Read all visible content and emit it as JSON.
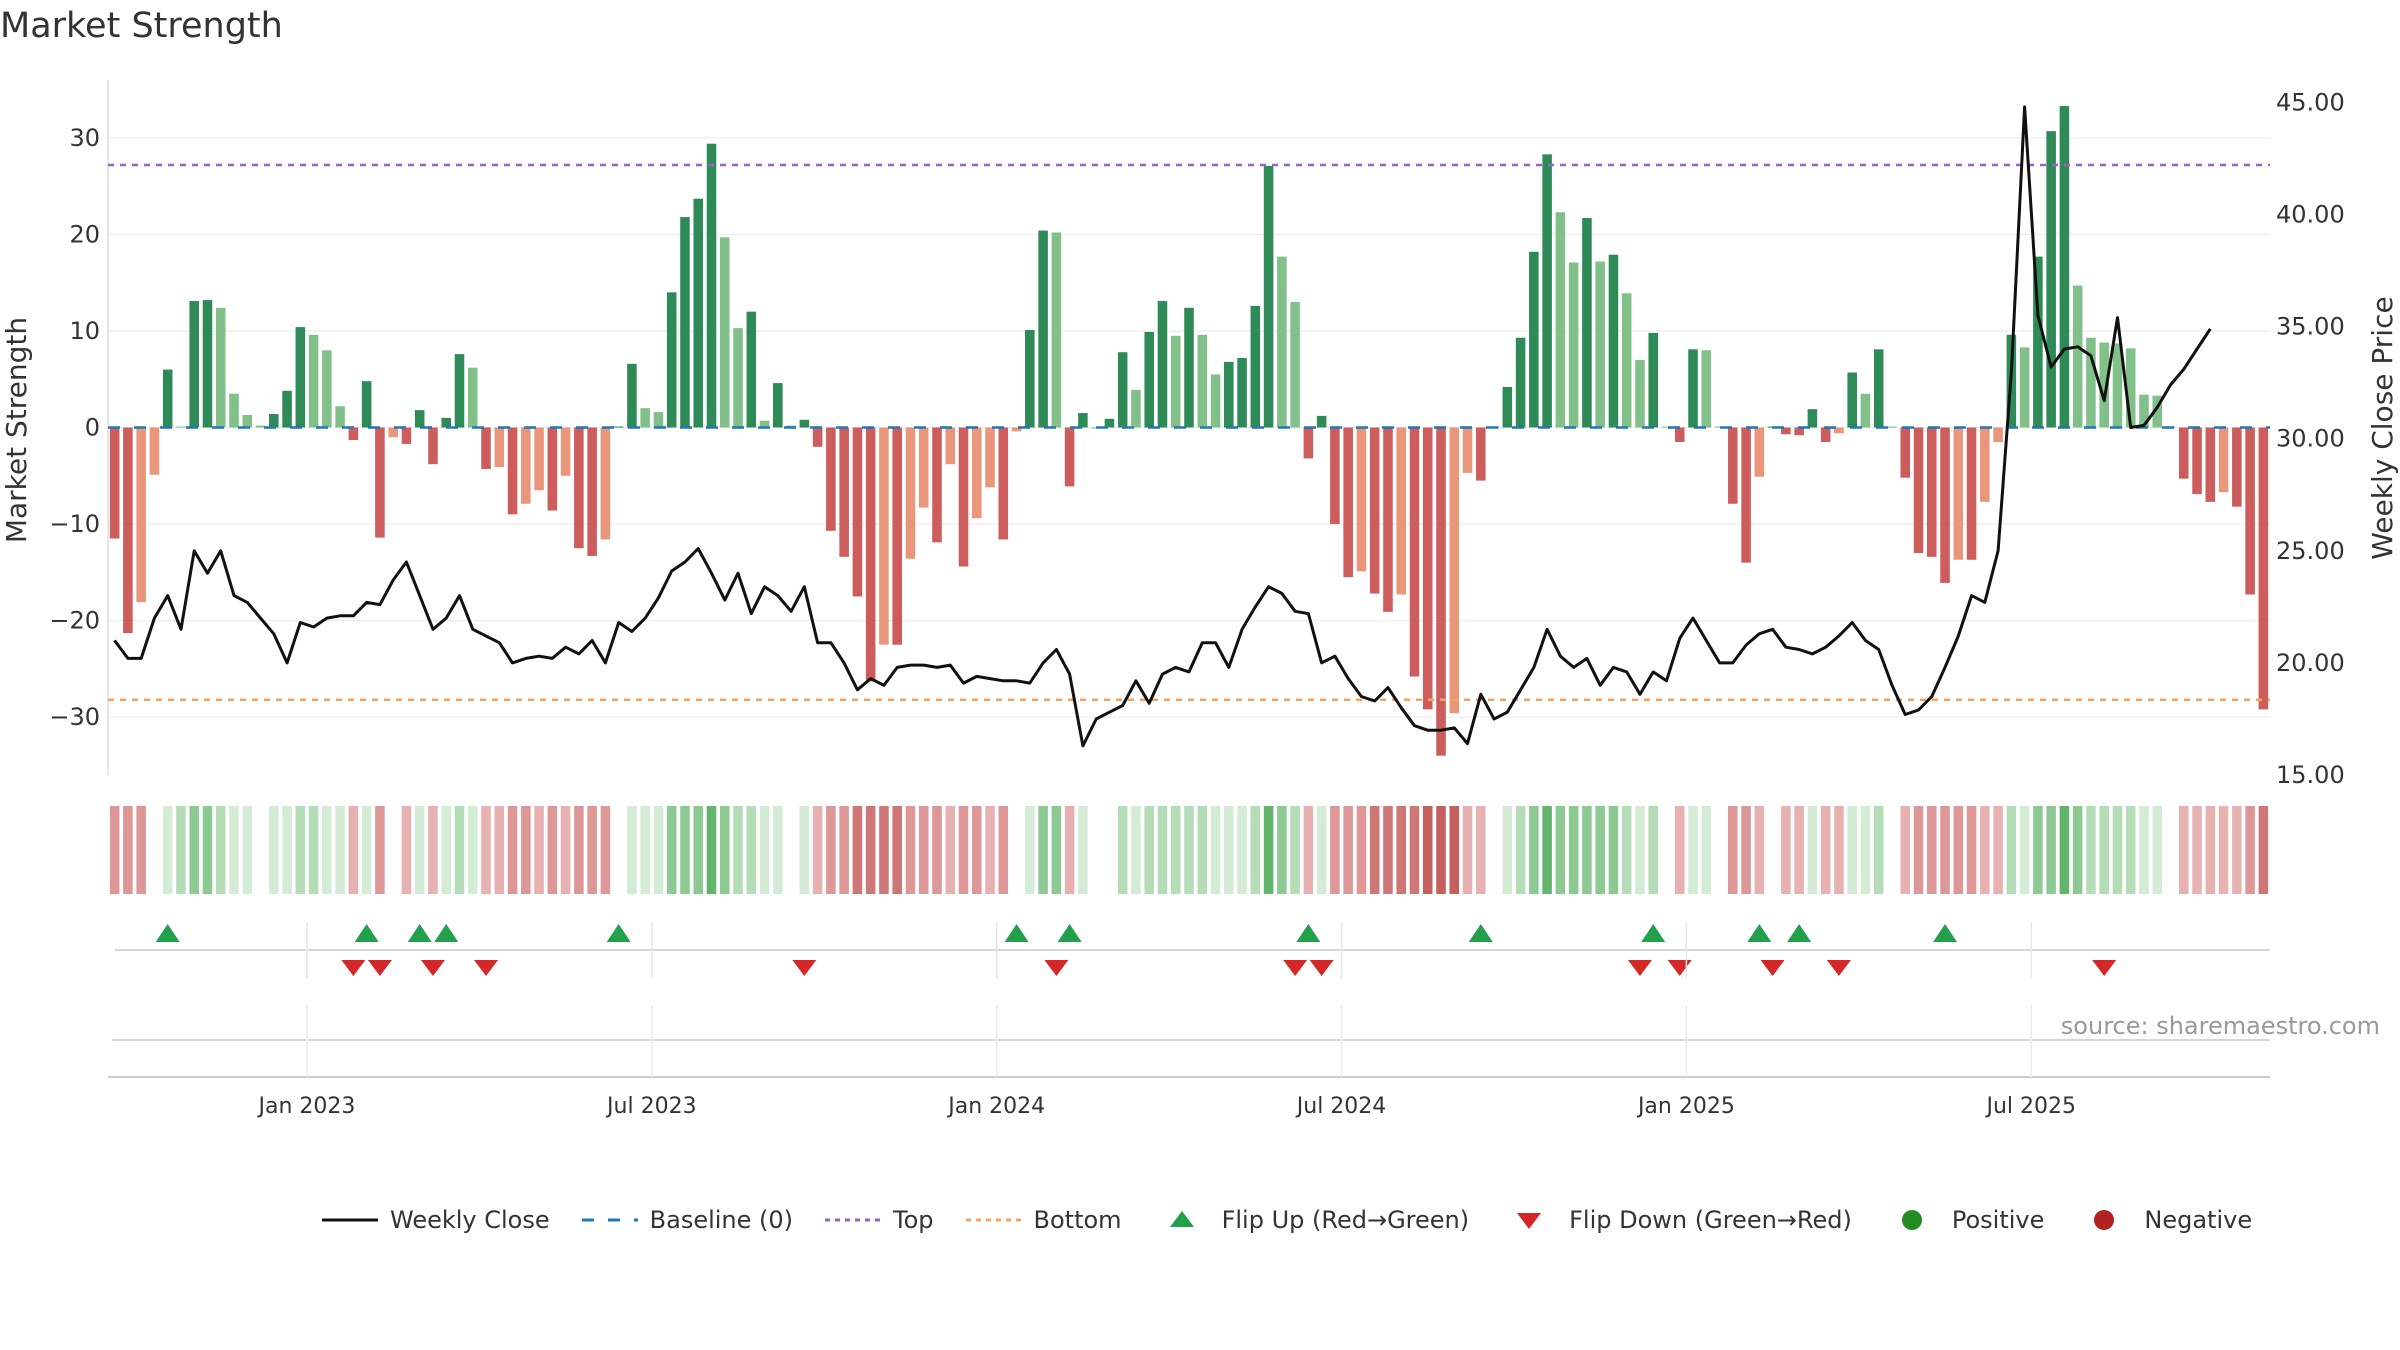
{
  "title": "Market Strength",
  "source": "source: sharemaestro.com",
  "colors": {
    "pos_strong": "#2e8b57",
    "pos_weak": "#82c08a",
    "neg_strong": "#cd5c5c",
    "neg_weak": "#e9967a",
    "close": "#111111",
    "baseline": "#1f77b4",
    "top": "#9467bd",
    "bottom": "#f4a460",
    "flip_up": "#22a04b",
    "flip_down": "#d62728",
    "positive": "#228b22",
    "negative": "#b22222"
  },
  "legend": [
    {
      "key": "close",
      "label": "Weekly Close"
    },
    {
      "key": "baseline",
      "label": "Baseline (0)"
    },
    {
      "key": "top",
      "label": "Top"
    },
    {
      "key": "bottom",
      "label": "Bottom"
    },
    {
      "key": "flip_up",
      "label": "Flip Up (Red→Green)"
    },
    {
      "key": "flip_down",
      "label": "Flip Down (Green→Red)"
    },
    {
      "key": "positive",
      "label": "Positive"
    },
    {
      "key": "negative",
      "label": "Negative"
    }
  ],
  "chart_data": {
    "type": "bar",
    "title": "Market Strength",
    "ylabel": "Market Strength",
    "y2label": "Weekly Close Price",
    "ylim": [
      -36,
      36
    ],
    "y2lim": [
      15,
      46
    ],
    "yticks": [
      -30,
      -20,
      -10,
      0,
      10,
      20,
      30
    ],
    "ytick_labels": [
      "−30",
      "−20",
      "−10",
      "0",
      "10",
      "20",
      "30"
    ],
    "y2ticks": [
      15,
      20,
      25,
      30,
      35,
      40,
      45
    ],
    "y2tick_labels": [
      "15.00",
      "20.00",
      "25.00",
      "30.00",
      "35.00",
      "40.00",
      "45.00"
    ],
    "top_line": 27.2,
    "bottom_line": -28.2,
    "xticks": [
      {
        "index": 15,
        "label": "Jan 2023"
      },
      {
        "index": 41,
        "label": "Jul 2023"
      },
      {
        "index": 67,
        "label": "Jan 2024"
      },
      {
        "index": 93,
        "label": "Jul 2024"
      },
      {
        "index": 119,
        "label": "Jan 2025"
      },
      {
        "index": 145,
        "label": "Jul 2025"
      }
    ],
    "strength": [
      -11.5,
      -21.3,
      -18.1,
      -4.9,
      6.0,
      0.1,
      13.1,
      13.2,
      12.4,
      3.5,
      1.3,
      0.2,
      1.4,
      3.8,
      10.4,
      9.6,
      8.0,
      2.2,
      -1.3,
      4.8,
      -11.4,
      -1.0,
      -1.7,
      1.8,
      -3.8,
      1.0,
      7.6,
      6.2,
      -4.3,
      -4.1,
      -9.0,
      -7.9,
      -6.5,
      -8.6,
      -5.0,
      -12.5,
      -13.3,
      -11.6,
      0.1,
      6.6,
      2.0,
      1.6,
      14.0,
      21.8,
      23.7,
      29.4,
      19.7,
      10.3,
      12.0,
      0.7,
      4.6,
      0.2,
      0.8,
      -2.0,
      -10.7,
      -13.4,
      -17.5,
      -26.3,
      -22.5,
      -22.5,
      -13.6,
      -8.3,
      -11.9,
      -3.8,
      -14.4,
      -9.4,
      -6.2,
      -11.6,
      -0.4,
      10.1,
      20.4,
      20.2,
      -6.1,
      1.5,
      0.0,
      0.9,
      7.8,
      3.9,
      9.9,
      13.1,
      9.5,
      12.4,
      9.6,
      5.5,
      6.8,
      7.2,
      12.6,
      27.1,
      17.7,
      13.0,
      -3.2,
      1.2,
      -10.0,
      -15.5,
      -14.9,
      -17.2,
      -19.1,
      -17.3,
      -25.8,
      -29.2,
      -34.0,
      -29.6,
      -4.7,
      -5.5,
      0.1,
      4.2,
      9.3,
      18.2,
      28.3,
      22.3,
      17.1,
      21.7,
      17.2,
      17.9,
      13.9,
      7.0,
      9.8,
      0.1,
      -1.5,
      8.1,
      8.0,
      0.1,
      -7.9,
      -14.0,
      -5.1,
      0.1,
      -0.7,
      -0.8,
      1.9,
      -1.5,
      -0.6,
      5.7,
      3.5,
      8.1,
      0.1,
      -5.2,
      -13.0,
      -13.4,
      -16.1,
      -13.7,
      -13.7,
      -7.7,
      -1.5,
      9.6,
      8.3,
      17.7,
      30.7,
      33.3,
      14.7,
      9.3,
      8.8,
      8.7,
      8.2,
      3.4,
      3.3,
      0.1,
      -5.3,
      -6.9,
      -7.7,
      -6.7,
      -8.2,
      -17.3,
      -29.2
    ],
    "close": [
      21.0,
      20.2,
      20.2,
      22.0,
      23.0,
      21.5,
      25.0,
      24.0,
      25.0,
      23.0,
      22.7,
      22.0,
      21.3,
      20.0,
      21.8,
      21.6,
      22.0,
      22.1,
      22.1,
      22.7,
      22.6,
      23.7,
      24.5,
      23.0,
      21.5,
      22.0,
      23.0,
      21.5,
      21.2,
      20.9,
      20.0,
      20.2,
      20.3,
      20.2,
      20.7,
      20.4,
      21.0,
      20.0,
      21.8,
      21.4,
      22.0,
      22.9,
      24.1,
      24.5,
      25.1,
      24.0,
      22.8,
      24.0,
      22.2,
      23.4,
      23.0,
      22.3,
      23.4,
      20.9,
      20.9,
      20.0,
      18.8,
      19.3,
      19.0,
      19.8,
      19.9,
      19.9,
      19.8,
      19.9,
      19.1,
      19.4,
      19.3,
      19.2,
      19.2,
      19.1,
      20.0,
      20.6,
      19.5,
      16.3,
      17.5,
      17.8,
      18.1,
      19.2,
      18.2,
      19.5,
      19.8,
      19.6,
      20.9,
      20.9,
      19.8,
      21.5,
      22.5,
      23.4,
      23.1,
      22.3,
      22.2,
      20.0,
      20.3,
      19.3,
      18.5,
      18.3,
      18.9,
      18.0,
      17.2,
      17.0,
      17.0,
      17.1,
      16.4,
      18.6,
      17.5,
      17.8,
      18.8,
      19.8,
      21.5,
      20.3,
      19.8,
      20.2,
      19.0,
      19.8,
      19.6,
      18.6,
      19.6,
      19.2,
      21.1,
      22.0,
      21.0,
      20.0,
      20.0,
      20.8,
      21.3,
      21.5,
      20.7,
      20.6,
      20.4,
      20.7,
      21.2,
      21.8,
      21.0,
      20.6,
      19.0,
      17.7,
      17.9,
      18.5,
      19.8,
      21.2,
      23.0,
      22.7,
      25.0,
      33.0,
      44.8,
      35.5,
      33.2,
      34.0,
      34.1,
      33.7,
      31.7,
      35.4,
      30.5,
      30.6,
      31.4,
      32.4,
      33.1,
      34.0,
      34.9
    ],
    "trend": [
      -2,
      -2,
      -2,
      0,
      1,
      2,
      3,
      3,
      2,
      1,
      1,
      0,
      1,
      1,
      2,
      2,
      1,
      1,
      -1,
      1,
      -2,
      0,
      -1,
      1,
      -1,
      1,
      2,
      1,
      -1,
      -1,
      -2,
      -2,
      -1,
      -2,
      -1,
      -2,
      -2,
      -2,
      0,
      1,
      1,
      1,
      3,
      3,
      3,
      4,
      3,
      2,
      2,
      1,
      1,
      0,
      1,
      -1,
      -2,
      -2,
      -3,
      -3,
      -3,
      -3,
      -2,
      -2,
      -2,
      -1,
      -2,
      -2,
      -1,
      -2,
      0,
      1,
      3,
      3,
      -1,
      1,
      0,
      0,
      2,
      1,
      2,
      2,
      2,
      2,
      2,
      1,
      1,
      1,
      2,
      4,
      3,
      2,
      -1,
      1,
      -2,
      -2,
      -2,
      -3,
      -3,
      -3,
      -3,
      -4,
      -4,
      -4,
      -1,
      -1,
      0,
      1,
      2,
      3,
      4,
      3,
      3,
      3,
      3,
      3,
      2,
      1,
      2,
      0,
      -1,
      1,
      1,
      0,
      -2,
      -2,
      -1,
      0,
      -1,
      -1,
      1,
      -1,
      -1,
      1,
      1,
      2,
      0,
      -1,
      -2,
      -2,
      -2,
      -2,
      -2,
      -1,
      -1,
      2,
      1,
      3,
      3,
      4,
      3,
      2,
      2,
      2,
      2,
      1,
      1,
      0,
      -1,
      -1,
      -1,
      -1,
      -1,
      -2,
      -3
    ],
    "flip_up": [
      4,
      19,
      23,
      25,
      38,
      68,
      72,
      90,
      103,
      116,
      124,
      127,
      138
    ],
    "flip_down": [
      18,
      20,
      24,
      28,
      52,
      71,
      89,
      91,
      115,
      118,
      125,
      130,
      150
    ]
  }
}
